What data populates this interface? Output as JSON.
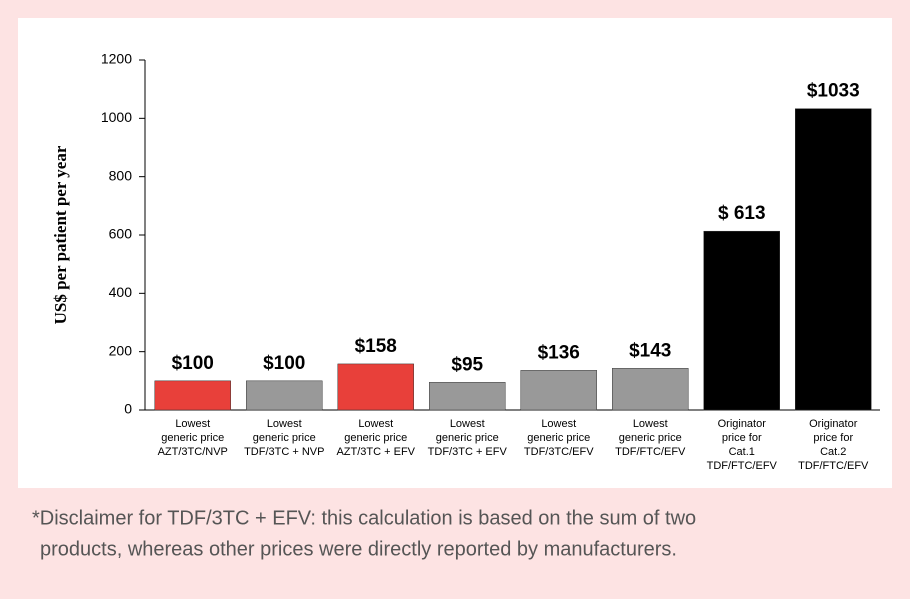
{
  "chart_data": {
    "type": "bar",
    "ylabel": "US$ per patient per year",
    "categories": [
      [
        "Lowest",
        "generic price",
        "AZT/3TC/NVP"
      ],
      [
        "Lowest",
        "generic price",
        "TDF/3TC + NVP"
      ],
      [
        "Lowest",
        "generic price",
        "AZT/3TC + EFV"
      ],
      [
        "Lowest",
        "generic price",
        "TDF/3TC + EFV"
      ],
      [
        "Lowest",
        "generic price",
        "TDF/3TC/EFV"
      ],
      [
        "Lowest",
        "generic price",
        "TDF/FTC/EFV"
      ],
      [
        "Originator",
        "price for",
        "Cat.1",
        "TDF/FTC/EFV"
      ],
      [
        "Originator",
        "price for",
        "Cat.2",
        "TDF/FTC/EFV"
      ]
    ],
    "values": [
      100,
      100,
      158,
      95,
      136,
      143,
      613,
      1033
    ],
    "value_labels": [
      "$100",
      "$100",
      "$158",
      "$95",
      "$136",
      "$143",
      "$ 613",
      "$1033"
    ],
    "colors": [
      "#e8403a",
      "#999999",
      "#e8403a",
      "#999999",
      "#999999",
      "#999999",
      "#000000",
      "#000000"
    ],
    "ylim": [
      0,
      1200
    ],
    "yticks": [
      0,
      200,
      400,
      600,
      800,
      1000,
      1200
    ],
    "grid": false,
    "note": [
      "*Disclaimer for TDF/3TC + EFV: this calculation is based on the sum of two",
      "products, whereas other prices were directly reported by manufacturers."
    ]
  }
}
